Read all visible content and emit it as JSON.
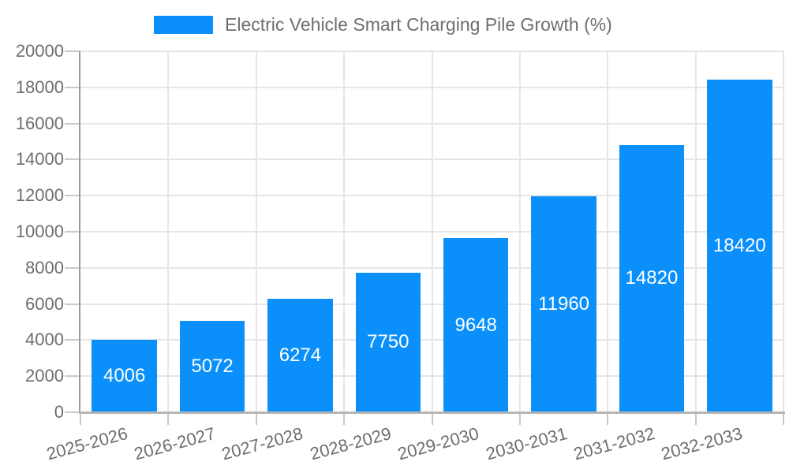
{
  "chart_data": {
    "type": "bar",
    "title": "Electric Vehicle Smart Charging Pile Growth (%)",
    "categories": [
      "2025-2026",
      "2026-2027",
      "2027-2028",
      "2028-2029",
      "2029-2030",
      "2030-2031",
      "2031-2032",
      "2032-2033"
    ],
    "values": [
      4006,
      5072,
      6274,
      7750,
      9648,
      11960,
      14820,
      18420
    ],
    "value_labels": [
      "4006",
      "5072",
      "6274",
      "7750",
      "9648",
      "11960",
      "14820",
      "18420"
    ],
    "xlabel": "",
    "ylabel": "",
    "ylim": [
      0,
      20000
    ],
    "yticks": [
      0,
      2000,
      4000,
      6000,
      8000,
      10000,
      12000,
      14000,
      16000,
      18000,
      20000
    ],
    "ytick_labels": [
      "0",
      "2000",
      "4000",
      "6000",
      "8000",
      "10000",
      "12000",
      "14000",
      "16000",
      "18000",
      "20000"
    ],
    "grid": true,
    "legend_position": "top-center",
    "bar_label_position": "center-inside",
    "x_label_rotation_deg": -15
  },
  "colors": {
    "bar": "#0b90fb",
    "text": "#6e6e6e",
    "value_label": "#ffffff",
    "gridline": "#e6e6e6",
    "y_axis": "#9a9a9a",
    "x_axis": "#b5b5b5",
    "tick": "#c9c9c9",
    "background": "#ffffff"
  }
}
